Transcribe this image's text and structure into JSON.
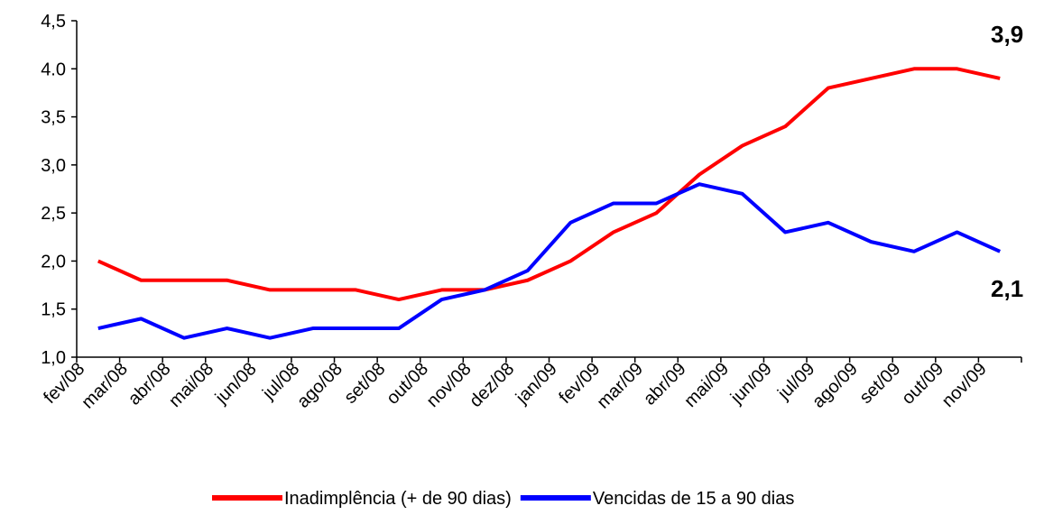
{
  "chart_data": {
    "type": "line",
    "categories": [
      "fev/08",
      "mar/08",
      "abr/08",
      "mai/08",
      "jun/08",
      "jul/08",
      "ago/08",
      "set/08",
      "out/08",
      "nov/08",
      "dez/08",
      "jan/09",
      "fev/09",
      "mar/09",
      "abr/09",
      "mai/09",
      "jun/09",
      "jul/09",
      "ago/09",
      "set/09",
      "out/09",
      "nov/09"
    ],
    "series": [
      {
        "name": "Inadimplência (+ de 90 dias)",
        "color": "#ff0000",
        "values": [
          2.0,
          1.8,
          1.8,
          1.8,
          1.7,
          1.7,
          1.7,
          1.6,
          1.7,
          1.7,
          1.8,
          2.0,
          2.3,
          2.5,
          2.9,
          3.2,
          3.4,
          3.8,
          3.9,
          4.0,
          4.0,
          3.9
        ],
        "value_labels": [
          null,
          null,
          null,
          null,
          null,
          null,
          null,
          null,
          null,
          null,
          null,
          null,
          null,
          null,
          null,
          null,
          null,
          null,
          null,
          null,
          null,
          "3,9"
        ]
      },
      {
        "name": "Vencidas de 15 a 90 dias",
        "color": "#0000ff",
        "values": [
          1.3,
          1.4,
          1.2,
          1.3,
          1.2,
          1.3,
          1.3,
          1.3,
          1.6,
          1.7,
          1.9,
          2.4,
          2.6,
          2.6,
          2.8,
          2.7,
          2.3,
          2.4,
          2.2,
          2.1,
          2.3,
          2.1
        ],
        "value_labels": [
          null,
          null,
          null,
          null,
          null,
          null,
          null,
          null,
          null,
          null,
          null,
          null,
          null,
          null,
          null,
          null,
          null,
          null,
          null,
          null,
          null,
          "2,1"
        ]
      }
    ],
    "ylim": [
      1.0,
      4.5
    ],
    "yticks": [
      {
        "value": 1.0,
        "label": "1,0"
      },
      {
        "value": 1.5,
        "label": "1,5"
      },
      {
        "value": 2.0,
        "label": "2,0"
      },
      {
        "value": 2.5,
        "label": "2,5"
      },
      {
        "value": 3.0,
        "label": "3,0"
      },
      {
        "value": 3.5,
        "label": "3,5"
      },
      {
        "value": 4.0,
        "label": "4.0"
      },
      {
        "value": 4.5,
        "label": "4,5"
      }
    ],
    "grid": false,
    "legend": "bottom"
  }
}
